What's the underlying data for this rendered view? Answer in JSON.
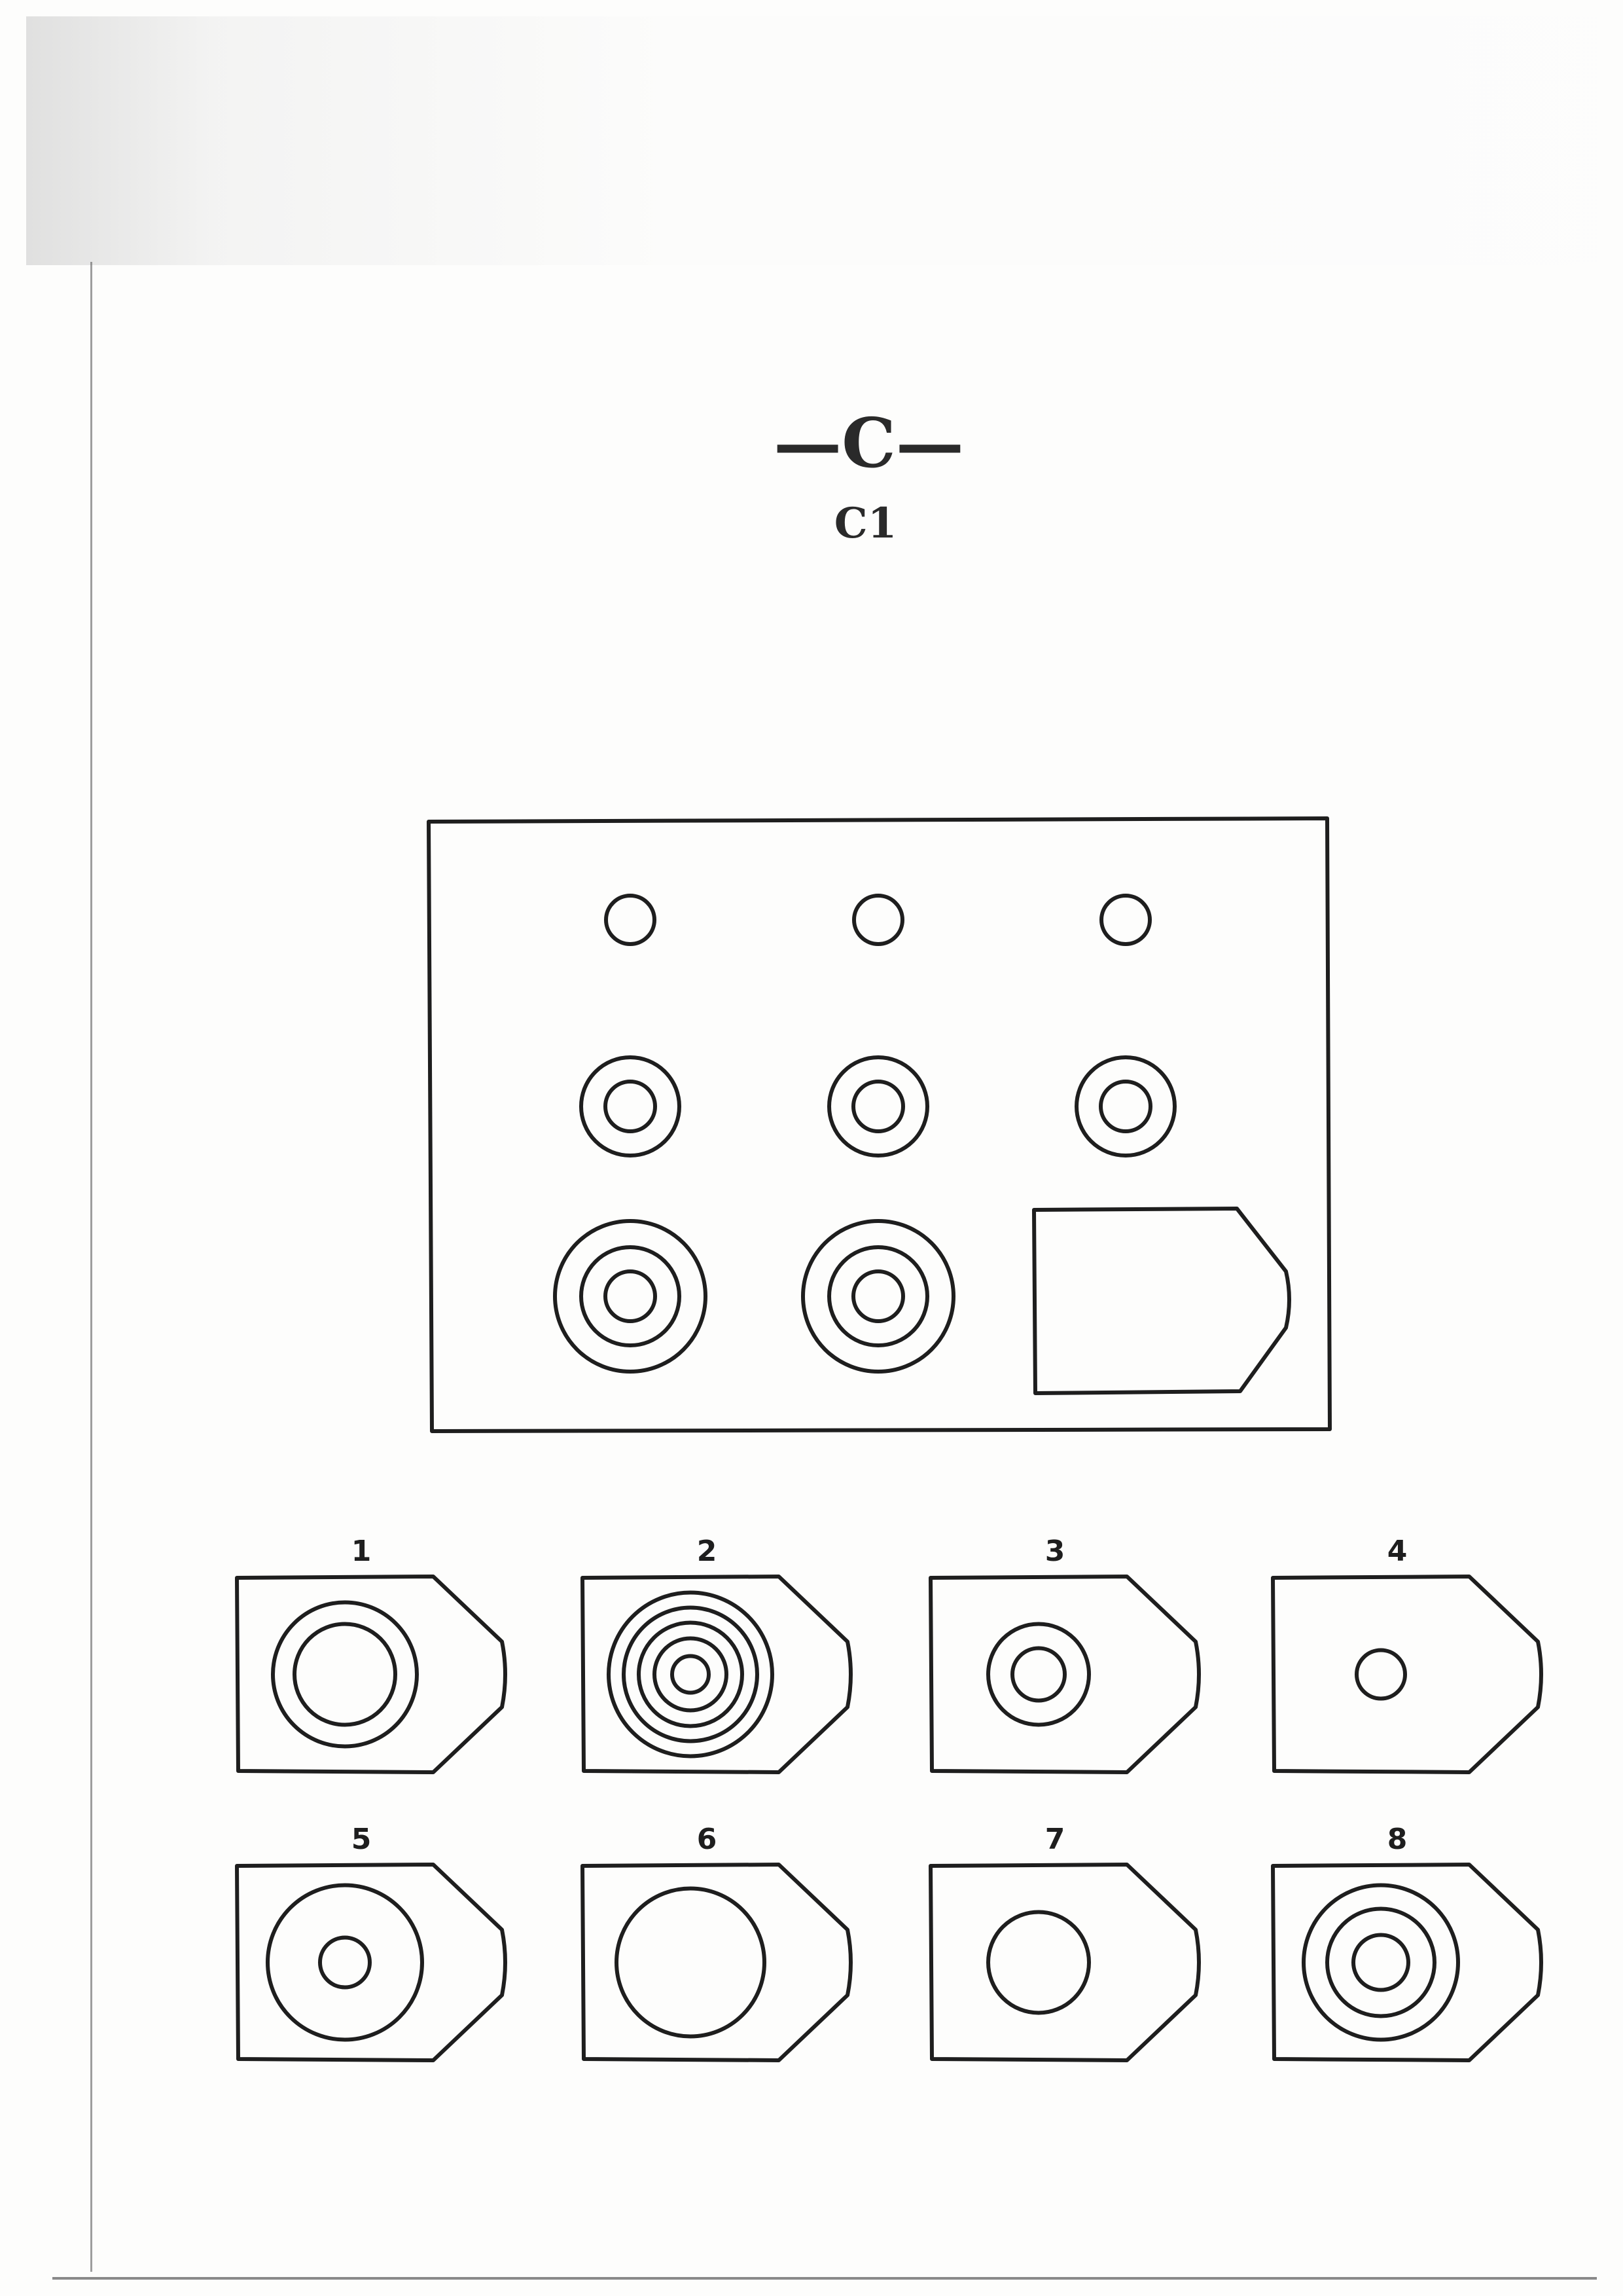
{
  "header": {
    "title": "—C—",
    "subtitle": "C1"
  },
  "matrix": {
    "rows": [
      [
        {
          "rings": 1,
          "missing": false
        },
        {
          "rings": 1,
          "missing": false
        },
        {
          "rings": 1,
          "missing": false
        }
      ],
      [
        {
          "rings": 2,
          "missing": false
        },
        {
          "rings": 2,
          "missing": false
        },
        {
          "rings": 2,
          "missing": false
        }
      ],
      [
        {
          "rings": 3,
          "missing": false
        },
        {
          "rings": 3,
          "missing": false
        },
        {
          "rings": null,
          "missing": true
        }
      ]
    ]
  },
  "options": [
    {
      "label": "1",
      "rings": 2,
      "style": "large-double"
    },
    {
      "label": "2",
      "rings": 5,
      "style": "concentric"
    },
    {
      "label": "3",
      "rings": 2,
      "style": "double"
    },
    {
      "label": "4",
      "rings": 1,
      "style": "small"
    },
    {
      "label": "5",
      "rings": 2,
      "style": "wide-gap"
    },
    {
      "label": "6",
      "rings": 1,
      "style": "large"
    },
    {
      "label": "7",
      "rings": 1,
      "style": "medium"
    },
    {
      "label": "8",
      "rings": 3,
      "style": "triple"
    }
  ],
  "colors": {
    "ink": "#1e1e1e",
    "paper": "#fdfdfc"
  }
}
